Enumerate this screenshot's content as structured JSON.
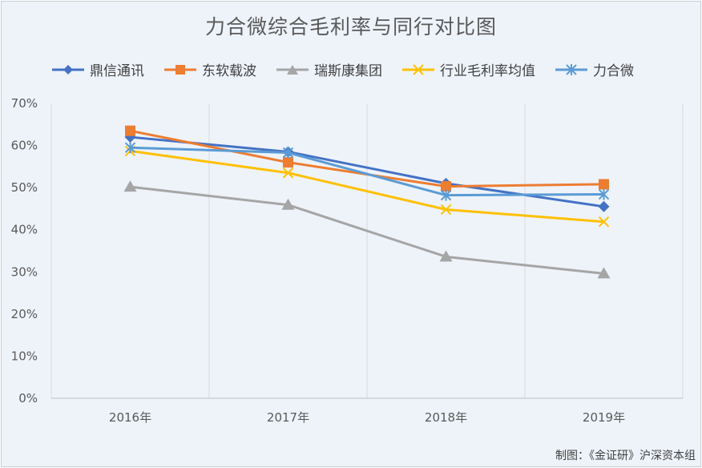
{
  "chart_data": {
    "type": "line",
    "title": "力合微综合毛利率与同行对比图",
    "categories": [
      "2016年",
      "2017年",
      "2018年",
      "2019年"
    ],
    "y_ticks": [
      "0%",
      "10%",
      "20%",
      "30%",
      "40%",
      "50%",
      "60%",
      "70%"
    ],
    "ylim": [
      0,
      70
    ],
    "grid": "vertical",
    "legend_position": "top",
    "series": [
      {
        "name": "鼎信通讯",
        "color": "#4472c4",
        "marker": "diamond",
        "values": [
          62.0,
          58.5,
          51.0,
          45.5
        ]
      },
      {
        "name": "东软载波",
        "color": "#ed7d31",
        "marker": "square",
        "values": [
          63.5,
          56.0,
          50.3,
          50.8
        ]
      },
      {
        "name": "瑞斯康集团",
        "color": "#a5a5a5",
        "marker": "triangle",
        "values": [
          50.2,
          45.9,
          33.6,
          29.6
        ]
      },
      {
        "name": "行业毛利率均值",
        "color": "#ffc000",
        "marker": "x",
        "values": [
          58.7,
          53.5,
          44.8,
          41.9
        ]
      },
      {
        "name": "力合微",
        "color": "#5b9bd5",
        "marker": "star",
        "values": [
          59.5,
          58.3,
          48.2,
          48.4
        ]
      }
    ]
  },
  "source_note": "制图：《金证研》沪深资本组"
}
